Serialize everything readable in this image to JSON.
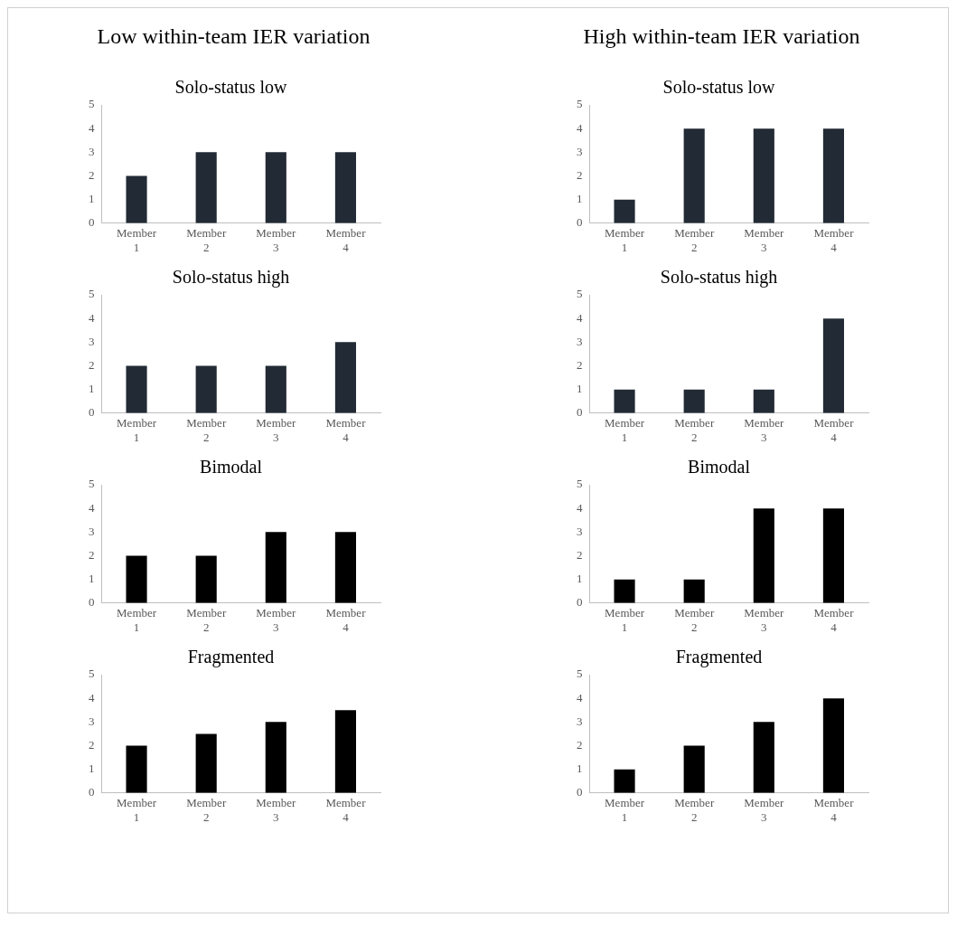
{
  "chart_data": [
    {
      "type": "other",
      "title": "Low within-team IER variation"
    },
    {
      "type": "other",
      "title": "High within-team IER variation"
    },
    {
      "type": "bar",
      "title": "Solo-status low",
      "categories": [
        "Member 1",
        "Member 2",
        "Member 3",
        "Member 4"
      ],
      "values": [
        2,
        3,
        3,
        3
      ],
      "color": "#222a35",
      "ylim": [
        0,
        5
      ],
      "yticks": [
        0,
        1,
        2,
        3,
        4,
        5
      ],
      "grid": false,
      "legend": false
    },
    {
      "type": "bar",
      "title": "Solo-status low",
      "categories": [
        "Member 1",
        "Member 2",
        "Member 3",
        "Member 4"
      ],
      "values": [
        1,
        4,
        4,
        4
      ],
      "color": "#222a35",
      "ylim": [
        0,
        5
      ],
      "yticks": [
        0,
        1,
        2,
        3,
        4,
        5
      ],
      "grid": false,
      "legend": false
    },
    {
      "type": "bar",
      "title": "Solo-status high",
      "categories": [
        "Member 1",
        "Member 2",
        "Member 3",
        "Member 4"
      ],
      "values": [
        2,
        2,
        2,
        3
      ],
      "color": "#222a35",
      "ylim": [
        0,
        5
      ],
      "yticks": [
        0,
        1,
        2,
        3,
        4,
        5
      ],
      "grid": false,
      "legend": false
    },
    {
      "type": "bar",
      "title": "Solo-status high",
      "categories": [
        "Member 1",
        "Member 2",
        "Member 3",
        "Member 4"
      ],
      "values": [
        1,
        1,
        1,
        4
      ],
      "color": "#222a35",
      "ylim": [
        0,
        5
      ],
      "yticks": [
        0,
        1,
        2,
        3,
        4,
        5
      ],
      "grid": false,
      "legend": false
    },
    {
      "type": "bar",
      "title": "Bimodal",
      "categories": [
        "Member 1",
        "Member 2",
        "Member 3",
        "Member 4"
      ],
      "values": [
        2,
        2,
        3,
        3
      ],
      "color": "#000000",
      "ylim": [
        0,
        5
      ],
      "yticks": [
        0,
        1,
        2,
        3,
        4,
        5
      ],
      "grid": false,
      "legend": false
    },
    {
      "type": "bar",
      "title": "Bimodal",
      "categories": [
        "Member 1",
        "Member 2",
        "Member 3",
        "Member 4"
      ],
      "values": [
        1,
        1,
        4,
        4
      ],
      "color": "#000000",
      "ylim": [
        0,
        5
      ],
      "yticks": [
        0,
        1,
        2,
        3,
        4,
        5
      ],
      "grid": false,
      "legend": false
    },
    {
      "type": "bar",
      "title": "Fragmented",
      "categories": [
        "Member 1",
        "Member 2",
        "Member 3",
        "Member 4"
      ],
      "values": [
        2,
        2.5,
        3,
        3.5
      ],
      "color": "#000000",
      "ylim": [
        0,
        5
      ],
      "yticks": [
        0,
        1,
        2,
        3,
        4,
        5
      ],
      "grid": false,
      "legend": false
    },
    {
      "type": "bar",
      "title": "Fragmented",
      "categories": [
        "Member 1",
        "Member 2",
        "Member 3",
        "Member 4"
      ],
      "values": [
        1,
        2,
        3,
        4
      ],
      "color": "#000000",
      "ylim": [
        0,
        5
      ],
      "yticks": [
        0,
        1,
        2,
        3,
        4,
        5
      ],
      "grid": false,
      "legend": false
    }
  ]
}
